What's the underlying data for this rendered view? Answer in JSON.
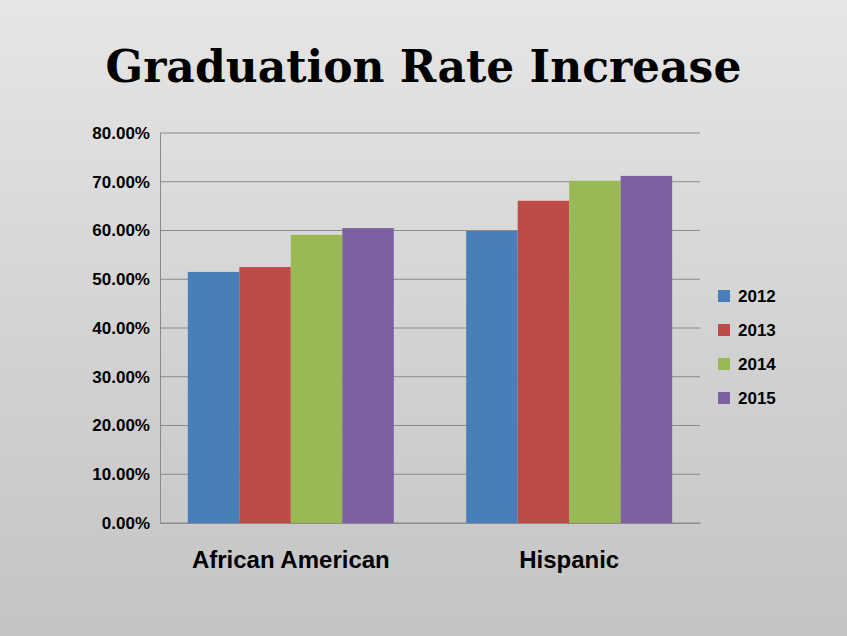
{
  "chart_data": {
    "type": "bar",
    "title": "Graduation Rate Increase",
    "categories": [
      "African American",
      "Hispanic"
    ],
    "series": [
      {
        "name": "2012",
        "color": "#4a7ebb",
        "values": [
          51.5,
          59.9
        ]
      },
      {
        "name": "2013",
        "color": "#be4b48",
        "values": [
          52.5,
          66.1
        ]
      },
      {
        "name": "2014",
        "color": "#98b954",
        "values": [
          59.1,
          70.2
        ]
      },
      {
        "name": "2015",
        "color": "#7d60a0",
        "values": [
          60.5,
          71.2
        ]
      }
    ],
    "ylim": [
      0,
      80
    ],
    "yticks": [
      {
        "value": 0,
        "label": "0.00%"
      },
      {
        "value": 10,
        "label": "10.00%"
      },
      {
        "value": 20,
        "label": "20.00%"
      },
      {
        "value": 30,
        "label": "30.00%"
      },
      {
        "value": 40,
        "label": "40.00%"
      },
      {
        "value": 50,
        "label": "50.00%"
      },
      {
        "value": 60,
        "label": "60.00%"
      },
      {
        "value": 70,
        "label": "70.00%"
      },
      {
        "value": 80,
        "label": "80.00%"
      }
    ],
    "grid": true,
    "legend": "right"
  }
}
